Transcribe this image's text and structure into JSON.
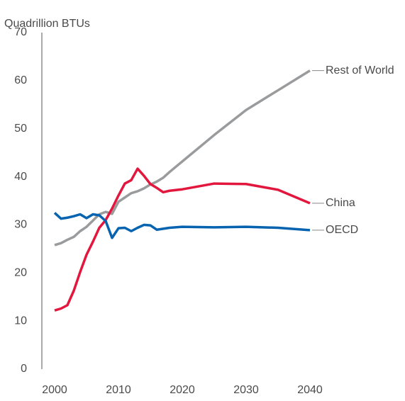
{
  "chart_data": {
    "type": "line",
    "y_axis_label": "Quadrillion BTUs",
    "x": [
      2000,
      2001,
      2002,
      2003,
      2004,
      2005,
      2006,
      2007,
      2008,
      2009,
      2010,
      2011,
      2012,
      2013,
      2014,
      2015,
      2016,
      2017,
      2018,
      2020,
      2025,
      2030,
      2035,
      2040
    ],
    "series": [
      {
        "name": "Rest of World",
        "color": "#9a9b9d",
        "values": [
          25.8,
          26.2,
          26.9,
          27.5,
          28.7,
          29.6,
          30.9,
          32.2,
          32.7,
          32.3,
          34.8,
          35.7,
          36.6,
          37.0,
          37.6,
          38.4,
          39.0,
          39.8,
          41.0,
          43.2,
          48.7,
          53.9,
          58.0,
          62.1
        ]
      },
      {
        "name": "China",
        "color": "#e3173e",
        "values": [
          12.2,
          12.6,
          13.3,
          16.3,
          20.2,
          23.8,
          26.5,
          29.4,
          31.0,
          33.4,
          36.1,
          38.6,
          39.3,
          41.7,
          40.2,
          38.5,
          37.7,
          36.8,
          37.1,
          37.4,
          38.6,
          38.5,
          37.3,
          34.5
        ]
      },
      {
        "name": "OECD",
        "color": "#0563b0",
        "values": [
          32.5,
          31.3,
          31.5,
          31.8,
          32.2,
          31.4,
          32.2,
          32.0,
          30.8,
          27.3,
          29.3,
          29.4,
          28.7,
          29.4,
          30.0,
          29.9,
          29.0,
          29.2,
          29.4,
          29.6,
          29.5,
          29.6,
          29.4,
          28.9
        ]
      }
    ],
    "xlim": [
      1998,
      2042
    ],
    "xticks": [
      2000,
      2010,
      2020,
      2030,
      2040
    ],
    "ylim": [
      0,
      70
    ],
    "yticks": [
      0,
      10,
      20,
      30,
      40,
      50,
      60,
      70
    ],
    "grid": false
  }
}
